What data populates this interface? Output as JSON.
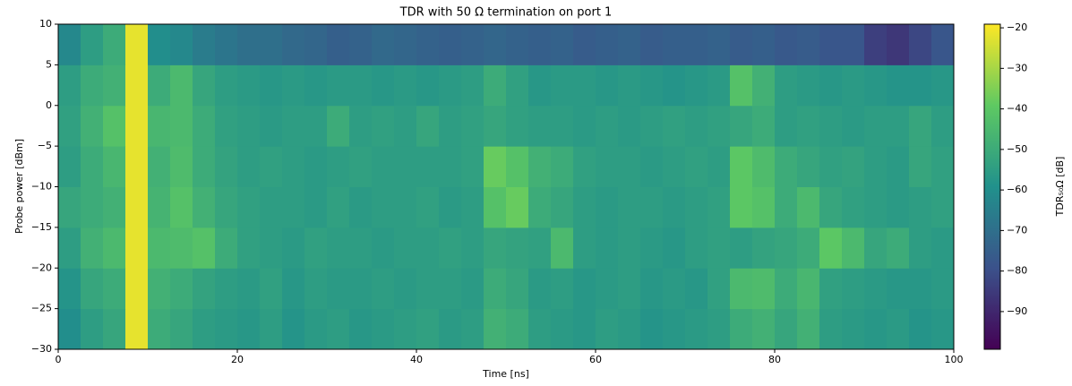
{
  "chart_data": {
    "type": "heatmap",
    "title": "TDR with 50 Ω termination on port 1",
    "xlabel": "Time [ns]",
    "ylabel": "Probe power [dBm]",
    "colorbar_label": "TDR₅₀Ω [dB]",
    "colormap": "viridis",
    "x": [
      1.25,
      3.75,
      6.25,
      8.75,
      11.25,
      13.75,
      16.25,
      18.75,
      21.25,
      23.75,
      26.25,
      28.75,
      31.25,
      33.75,
      36.25,
      38.75,
      41.25,
      43.75,
      46.25,
      48.75,
      51.25,
      53.75,
      56.25,
      58.75,
      61.25,
      63.75,
      66.25,
      68.75,
      71.25,
      73.75,
      76.25,
      78.75,
      81.25,
      83.75,
      86.25,
      88.75,
      91.25,
      93.75,
      96.25,
      98.75
    ],
    "y": [
      -27.5,
      -22.5,
      -17.5,
      -12.5,
      -7.5,
      -2.5,
      2.5,
      7.5
    ],
    "z": [
      [
        -60,
        -55,
        -52,
        -22,
        -50,
        -52,
        -55,
        -56,
        -57,
        -55,
        -58,
        -56,
        -55,
        -57,
        -56,
        -55,
        -54,
        -56,
        -55,
        -48,
        -50,
        -55,
        -56,
        -57,
        -55,
        -56,
        -58,
        -57,
        -56,
        -55,
        -50,
        -48,
        -52,
        -48,
        -55,
        -56,
        -57,
        -56,
        -58,
        -57
      ],
      [
        -58,
        -52,
        -50,
        -22,
        -48,
        -50,
        -53,
        -55,
        -56,
        -54,
        -57,
        -55,
        -56,
        -56,
        -55,
        -56,
        -55,
        -55,
        -56,
        -50,
        -52,
        -56,
        -55,
        -57,
        -56,
        -55,
        -57,
        -56,
        -57,
        -54,
        -45,
        -44,
        -50,
        -46,
        -54,
        -55,
        -56,
        -57,
        -57,
        -56
      ],
      [
        -55,
        -48,
        -45,
        -22,
        -45,
        -44,
        -42,
        -50,
        -54,
        -55,
        -56,
        -54,
        -55,
        -55,
        -56,
        -55,
        -55,
        -54,
        -55,
        -52,
        -53,
        -54,
        -45,
        -55,
        -56,
        -55,
        -56,
        -57,
        -55,
        -54,
        -55,
        -53,
        -52,
        -50,
        -40,
        -45,
        -52,
        -50,
        -55,
        -56
      ],
      [
        -52,
        -50,
        -48,
        -22,
        -47,
        -42,
        -48,
        -52,
        -54,
        -55,
        -55,
        -56,
        -54,
        -56,
        -55,
        -55,
        -54,
        -56,
        -55,
        -42,
        -38,
        -50,
        -52,
        -55,
        -56,
        -55,
        -55,
        -56,
        -55,
        -54,
        -40,
        -42,
        -50,
        -45,
        -52,
        -54,
        -55,
        -56,
        -55,
        -54
      ],
      [
        -55,
        -50,
        -46,
        -22,
        -48,
        -44,
        -50,
        -53,
        -55,
        -54,
        -55,
        -56,
        -55,
        -54,
        -55,
        -55,
        -55,
        -55,
        -54,
        -38,
        -42,
        -48,
        -50,
        -54,
        -55,
        -55,
        -56,
        -55,
        -54,
        -55,
        -40,
        -44,
        -50,
        -52,
        -54,
        -53,
        -55,
        -56,
        -52,
        -54
      ],
      [
        -54,
        -48,
        -42,
        -22,
        -46,
        -45,
        -50,
        -54,
        -55,
        -56,
        -55,
        -55,
        -50,
        -55,
        -54,
        -55,
        -52,
        -55,
        -54,
        -52,
        -54,
        -55,
        -55,
        -56,
        -55,
        -56,
        -55,
        -54,
        -55,
        -54,
        -52,
        -50,
        -55,
        -54,
        -55,
        -56,
        -55,
        -55,
        -52,
        -55
      ],
      [
        -55,
        -50,
        -48,
        -22,
        -50,
        -45,
        -52,
        -55,
        -56,
        -57,
        -56,
        -57,
        -56,
        -56,
        -57,
        -56,
        -57,
        -56,
        -55,
        -50,
        -54,
        -57,
        -56,
        -56,
        -57,
        -56,
        -57,
        -58,
        -57,
        -56,
        -42,
        -48,
        -55,
        -56,
        -57,
        -56,
        -57,
        -58,
        -58,
        -57
      ],
      [
        -62,
        -55,
        -50,
        -22,
        -60,
        -62,
        -66,
        -68,
        -70,
        -70,
        -72,
        -73,
        -75,
        -74,
        -72,
        -73,
        -74,
        -75,
        -74,
        -73,
        -74,
        -75,
        -74,
        -76,
        -75,
        -74,
        -76,
        -75,
        -75,
        -74,
        -76,
        -75,
        -77,
        -76,
        -78,
        -78,
        -84,
        -86,
        -82,
        -78
      ]
    ],
    "xlim": [
      0,
      100
    ],
    "xticks": [
      0,
      20,
      40,
      60,
      80,
      100
    ],
    "ylim": [
      -30,
      10
    ],
    "yticks": [
      {
        "value": -30,
        "label": "−30"
      },
      {
        "value": -25,
        "label": "−25"
      },
      {
        "value": -20,
        "label": "−20"
      },
      {
        "value": -15,
        "label": "−15"
      },
      {
        "value": -10,
        "label": "−10"
      },
      {
        "value": -5,
        "label": "−5"
      },
      0,
      5,
      10
    ],
    "zlim": [
      -99.3,
      -19.1
    ],
    "zticks": [
      {
        "value": -90,
        "label": "−90"
      },
      {
        "value": -80,
        "label": "−80"
      },
      {
        "value": -70,
        "label": "−70"
      },
      {
        "value": -60,
        "label": "−60"
      },
      {
        "value": -50,
        "label": "−50"
      },
      {
        "value": -40,
        "label": "−40"
      },
      {
        "value": -30,
        "label": "−30"
      },
      {
        "value": -20,
        "label": "−20"
      }
    ]
  }
}
